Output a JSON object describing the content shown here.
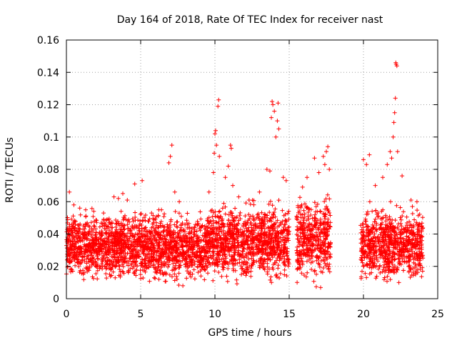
{
  "chart_data": {
    "type": "scatter",
    "title": "Day 164 of 2018, Rate Of TEC Index for receiver nast",
    "xlabel": "GPS time / hours",
    "ylabel": "ROTI / TECUs",
    "xlim": [
      0,
      25
    ],
    "ylim": [
      0,
      0.16
    ],
    "xticks": [
      0,
      5,
      10,
      15,
      20,
      25
    ],
    "xtick_labels": [
      "0",
      "5",
      "10",
      "15",
      "20",
      "25"
    ],
    "yticks": [
      0,
      0.02,
      0.04,
      0.06,
      0.08,
      0.1,
      0.12,
      0.14,
      0.16
    ],
    "ytick_labels": [
      "0",
      "0.02",
      "0.04",
      "0.06",
      "0.08",
      "0.1",
      "0.12",
      "0.14",
      "0.16"
    ],
    "grid": true,
    "marker": "+",
    "series": [
      {
        "name": "ROTI",
        "color": "#ff0000",
        "data_gap_hours": [
          17.8,
          19.8
        ],
        "points": [
          [
            0.2,
            0.066
          ],
          [
            0.5,
            0.058
          ],
          [
            0.9,
            0.056
          ],
          [
            1.3,
            0.055
          ],
          [
            2.5,
            0.053
          ],
          [
            3.2,
            0.063
          ],
          [
            3.5,
            0.062
          ],
          [
            3.8,
            0.065
          ],
          [
            4.1,
            0.061
          ],
          [
            4.6,
            0.071
          ],
          [
            5.1,
            0.073
          ],
          [
            6.4,
            0.055
          ],
          [
            6.9,
            0.084
          ],
          [
            7.0,
            0.088
          ],
          [
            7.1,
            0.095
          ],
          [
            7.3,
            0.066
          ],
          [
            7.6,
            0.06
          ],
          [
            9.6,
            0.066
          ],
          [
            9.9,
            0.078
          ],
          [
            9.95,
            0.09
          ],
          [
            10.0,
            0.102
          ],
          [
            10.05,
            0.104
          ],
          [
            10.1,
            0.095
          ],
          [
            10.2,
            0.119
          ],
          [
            10.25,
            0.123
          ],
          [
            10.3,
            0.088
          ],
          [
            10.7,
            0.075
          ],
          [
            10.9,
            0.082
          ],
          [
            11.05,
            0.095
          ],
          [
            11.1,
            0.093
          ],
          [
            11.2,
            0.07
          ],
          [
            11.6,
            0.063
          ],
          [
            12.3,
            0.061
          ],
          [
            13.0,
            0.066
          ],
          [
            13.5,
            0.08
          ],
          [
            13.7,
            0.079
          ],
          [
            13.8,
            0.112
          ],
          [
            13.85,
            0.122
          ],
          [
            13.9,
            0.12
          ],
          [
            14.0,
            0.116
          ],
          [
            14.1,
            0.1
          ],
          [
            14.2,
            0.11
          ],
          [
            14.25,
            0.121
          ],
          [
            14.3,
            0.105
          ],
          [
            14.6,
            0.075
          ],
          [
            14.8,
            0.073
          ],
          [
            15.9,
            0.069
          ],
          [
            16.2,
            0.075
          ],
          [
            16.7,
            0.087
          ],
          [
            17.0,
            0.078
          ],
          [
            17.3,
            0.088
          ],
          [
            17.4,
            0.083
          ],
          [
            17.5,
            0.091
          ],
          [
            17.6,
            0.094
          ],
          [
            17.7,
            0.08
          ],
          [
            20.0,
            0.086
          ],
          [
            20.2,
            0.083
          ],
          [
            20.4,
            0.089
          ],
          [
            20.8,
            0.07
          ],
          [
            21.3,
            0.075
          ],
          [
            21.6,
            0.083
          ],
          [
            21.8,
            0.091
          ],
          [
            21.9,
            0.087
          ],
          [
            22.0,
            0.1
          ],
          [
            22.05,
            0.109
          ],
          [
            22.1,
            0.115
          ],
          [
            22.15,
            0.124
          ],
          [
            22.18,
            0.146
          ],
          [
            22.2,
            0.145
          ],
          [
            22.25,
            0.144
          ],
          [
            22.3,
            0.091
          ],
          [
            22.6,
            0.076
          ],
          [
            23.2,
            0.061
          ],
          [
            23.6,
            0.06
          ]
        ],
        "dense_segments": [
          {
            "x_range": [
              0,
              4.5
            ],
            "y_range": [
              0.007,
              0.056
            ]
          },
          {
            "x_range": [
              4.5,
              9.5
            ],
            "y_range": [
              0.005,
              0.056
            ]
          },
          {
            "x_range": [
              9.5,
              12.5
            ],
            "y_range": [
              0.005,
              0.062
            ]
          },
          {
            "x_range": [
              12.5,
              15.0
            ],
            "y_range": [
              0.006,
              0.062
            ]
          },
          {
            "x_range": [
              15.5,
              17.8
            ],
            "y_range": [
              0.005,
              0.065
            ]
          },
          {
            "x_range": [
              19.8,
              24.0
            ],
            "y_range": [
              0.005,
              0.06
            ]
          }
        ]
      }
    ]
  }
}
